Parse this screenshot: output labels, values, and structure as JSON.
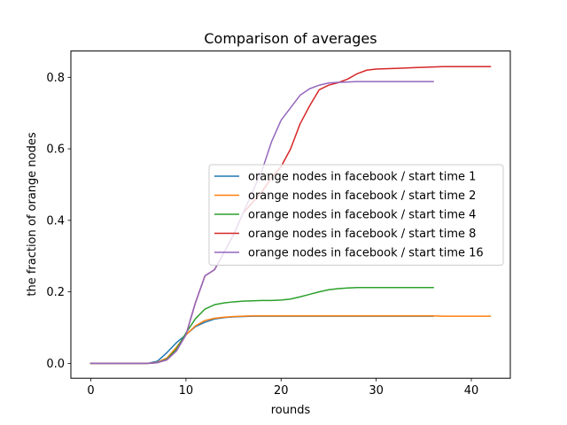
{
  "chart_data": {
    "type": "line",
    "title": "Comparison of averages",
    "xlabel": "rounds",
    "ylabel": "the fraction of orange nodes",
    "xlim": [
      -2.1,
      44.1
    ],
    "ylim": [
      -0.0416,
      0.8736
    ],
    "xticks": [
      0,
      10,
      20,
      30,
      40
    ],
    "xtick_labels": [
      "0",
      "10",
      "20",
      "30",
      "40"
    ],
    "yticks": [
      0.0,
      0.2,
      0.4,
      0.6,
      0.8
    ],
    "ytick_labels": [
      "0.0",
      "0.2",
      "0.4",
      "0.6",
      "0.8"
    ],
    "grid": false,
    "legend_position": "center-right",
    "series": [
      {
        "name": "orange nodes in facebook / start time 1",
        "color": "#1f77b4",
        "x": [
          0,
          1,
          2,
          3,
          4,
          5,
          6,
          7,
          8,
          9,
          10,
          11,
          12,
          13,
          14,
          15,
          16,
          17,
          18,
          19,
          20,
          21,
          22,
          23,
          24,
          25,
          26,
          27,
          28,
          29,
          30,
          31,
          32,
          33,
          34,
          35,
          36
        ],
        "y": [
          0,
          0,
          0,
          0,
          0,
          0,
          0,
          0.006,
          0.03,
          0.058,
          0.08,
          0.103,
          0.115,
          0.124,
          0.128,
          0.13,
          0.131,
          0.132,
          0.132,
          0.132,
          0.132,
          0.132,
          0.132,
          0.132,
          0.132,
          0.132,
          0.132,
          0.132,
          0.132,
          0.132,
          0.132,
          0.132,
          0.132,
          0.132,
          0.132,
          0.132,
          0.132
        ]
      },
      {
        "name": "orange nodes in facebook / start time 2",
        "color": "#ff7f0e",
        "x": [
          0,
          1,
          2,
          3,
          4,
          5,
          6,
          7,
          8,
          9,
          10,
          11,
          12,
          13,
          14,
          15,
          16,
          17,
          18,
          19,
          20,
          21,
          22,
          23,
          24,
          25,
          26,
          27,
          28,
          29,
          30,
          31,
          32,
          33,
          34,
          35,
          36,
          37,
          38,
          39,
          40,
          41,
          42
        ],
        "y": [
          0,
          0,
          0,
          0,
          0,
          0,
          0,
          0.003,
          0.015,
          0.045,
          0.08,
          0.105,
          0.12,
          0.126,
          0.129,
          0.131,
          0.132,
          0.133,
          0.133,
          0.133,
          0.133,
          0.133,
          0.133,
          0.133,
          0.133,
          0.133,
          0.133,
          0.133,
          0.133,
          0.133,
          0.133,
          0.133,
          0.133,
          0.133,
          0.133,
          0.133,
          0.133,
          0.132,
          0.132,
          0.132,
          0.132,
          0.132,
          0.132
        ]
      },
      {
        "name": "orange nodes in facebook / start time 4",
        "color": "#2ca02c",
        "x": [
          0,
          1,
          2,
          3,
          4,
          5,
          6,
          7,
          8,
          9,
          10,
          11,
          12,
          13,
          14,
          15,
          16,
          17,
          18,
          19,
          20,
          21,
          22,
          23,
          24,
          25,
          26,
          27,
          28,
          29,
          30,
          31,
          32,
          33,
          34,
          35,
          36
        ],
        "y": [
          0,
          0,
          0,
          0,
          0,
          0,
          0,
          0.002,
          0.012,
          0.04,
          0.085,
          0.125,
          0.152,
          0.164,
          0.169,
          0.172,
          0.174,
          0.175,
          0.176,
          0.176,
          0.177,
          0.18,
          0.186,
          0.193,
          0.2,
          0.206,
          0.209,
          0.211,
          0.212,
          0.212,
          0.212,
          0.212,
          0.212,
          0.212,
          0.212,
          0.212,
          0.212
        ]
      },
      {
        "name": "orange nodes in facebook / start time 8",
        "color": "#d62728",
        "x": [
          0,
          1,
          2,
          3,
          4,
          5,
          6,
          7,
          8,
          9,
          10,
          11,
          12,
          13,
          14,
          15,
          16,
          17,
          18,
          19,
          20,
          21,
          22,
          23,
          24,
          25,
          26,
          27,
          28,
          29,
          30,
          31,
          32,
          33,
          34,
          35,
          36,
          37,
          38,
          39,
          40,
          41,
          42
        ],
        "y": [
          0,
          0,
          0,
          0,
          0,
          0,
          0,
          0.002,
          0.01,
          0.035,
          0.08,
          0.17,
          0.245,
          0.262,
          0.31,
          0.36,
          0.42,
          0.45,
          0.48,
          0.52,
          0.55,
          0.6,
          0.67,
          0.72,
          0.765,
          0.778,
          0.785,
          0.795,
          0.81,
          0.82,
          0.823,
          0.824,
          0.825,
          0.826,
          0.827,
          0.828,
          0.829,
          0.83,
          0.83,
          0.83,
          0.83,
          0.83,
          0.83
        ]
      },
      {
        "name": "orange nodes in facebook / start time 16",
        "color": "#9467bd",
        "x": [
          0,
          1,
          2,
          3,
          4,
          5,
          6,
          7,
          8,
          9,
          10,
          11,
          12,
          13,
          14,
          15,
          16,
          17,
          18,
          19,
          20,
          21,
          22,
          23,
          24,
          25,
          26,
          27,
          28,
          29,
          30,
          31,
          32,
          33,
          34,
          35,
          36
        ],
        "y": [
          0,
          0,
          0,
          0,
          0,
          0,
          0,
          0.002,
          0.01,
          0.035,
          0.08,
          0.17,
          0.245,
          0.262,
          0.31,
          0.36,
          0.42,
          0.48,
          0.54,
          0.62,
          0.68,
          0.715,
          0.75,
          0.768,
          0.778,
          0.784,
          0.786,
          0.787,
          0.788,
          0.788,
          0.788,
          0.788,
          0.788,
          0.788,
          0.788,
          0.788,
          0.788
        ]
      }
    ]
  }
}
